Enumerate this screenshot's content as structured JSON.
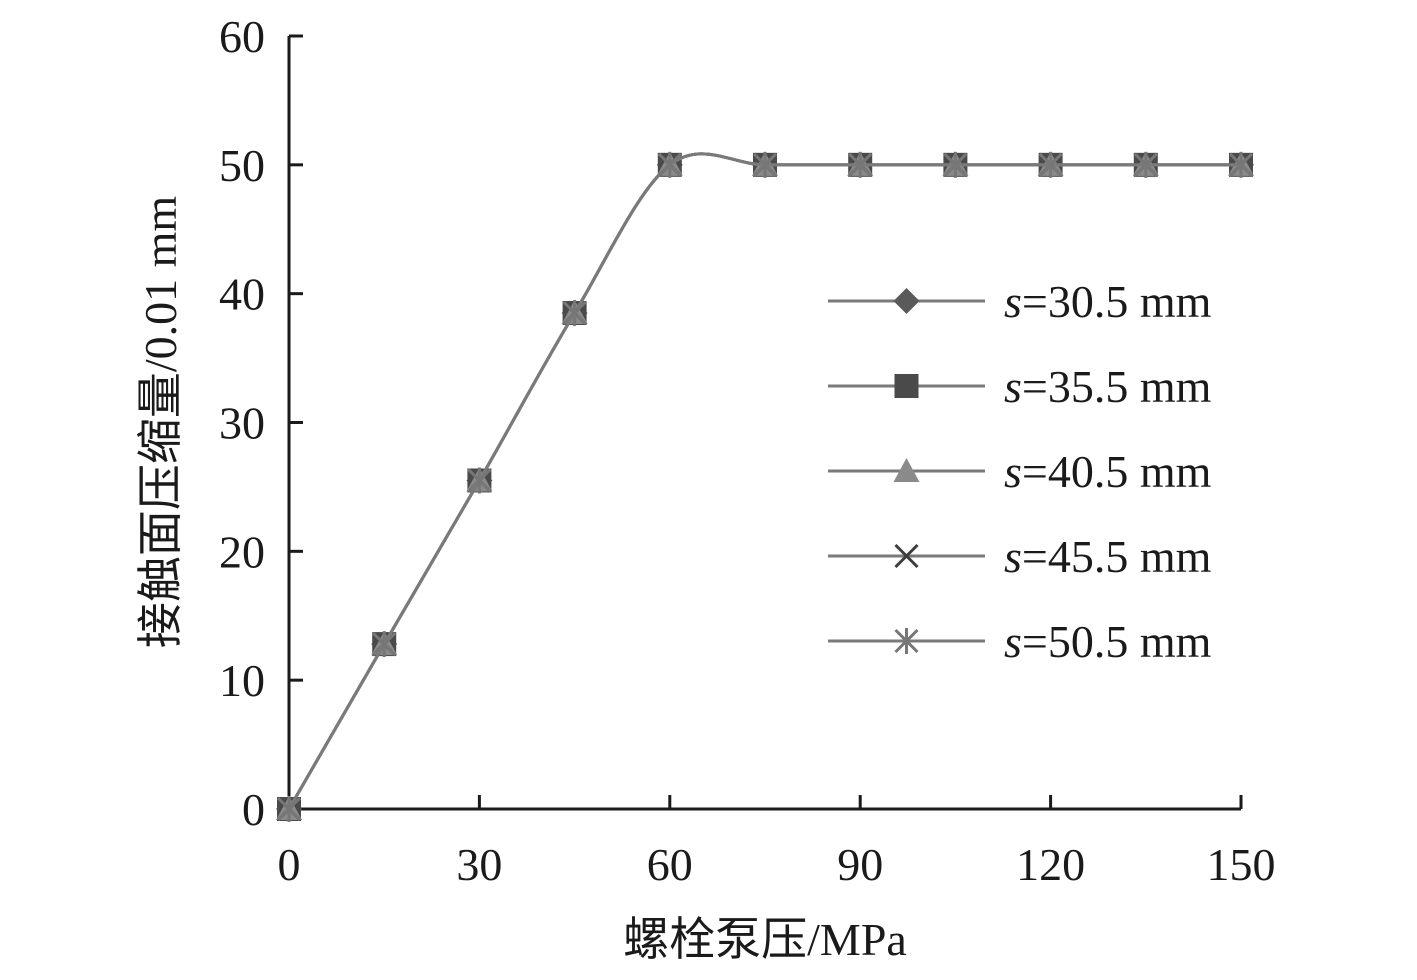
{
  "chart_data": {
    "type": "line",
    "xlabel": "螺栓泵压/MPa",
    "ylabel": "接触面压缩量/0.01 mm",
    "xlim": [
      0,
      150
    ],
    "ylim": [
      0,
      60
    ],
    "xticks": [
      0,
      30,
      60,
      90,
      120,
      150
    ],
    "yticks": [
      0,
      10,
      20,
      30,
      40,
      50,
      60
    ],
    "x": [
      0,
      15,
      30,
      45,
      60,
      75,
      90,
      105,
      120,
      135,
      150
    ],
    "grid": false,
    "legend_position": "right",
    "series": [
      {
        "name": "=30.5 mm",
        "name_prefix": "s",
        "marker": "diamond",
        "color": "#5a5a5a",
        "values": [
          0,
          12.8,
          25.5,
          38.5,
          50,
          50,
          50,
          50,
          50,
          50,
          50
        ]
      },
      {
        "name": "=35.5 mm",
        "name_prefix": "s",
        "marker": "square",
        "color": "#4a4a4a",
        "values": [
          0,
          12.8,
          25.5,
          38.5,
          50,
          50,
          50,
          50,
          50,
          50,
          50
        ]
      },
      {
        "name": "=40.5 mm",
        "name_prefix": "s",
        "marker": "triangle",
        "color": "#8a8a8a",
        "values": [
          0,
          12.8,
          25.5,
          38.5,
          50,
          50,
          50,
          50,
          50,
          50,
          50
        ]
      },
      {
        "name": "=45.5 mm",
        "name_prefix": "s",
        "marker": "x",
        "color": "#3e3e3e",
        "values": [
          0,
          12.8,
          25.5,
          38.5,
          50,
          50,
          50,
          50,
          50,
          50,
          50
        ]
      },
      {
        "name": "=50.5 mm",
        "name_prefix": "s",
        "marker": "star",
        "color": "#777777",
        "values": [
          0,
          12.8,
          25.5,
          38.5,
          50,
          50,
          50,
          50,
          50,
          50,
          50
        ]
      }
    ]
  }
}
